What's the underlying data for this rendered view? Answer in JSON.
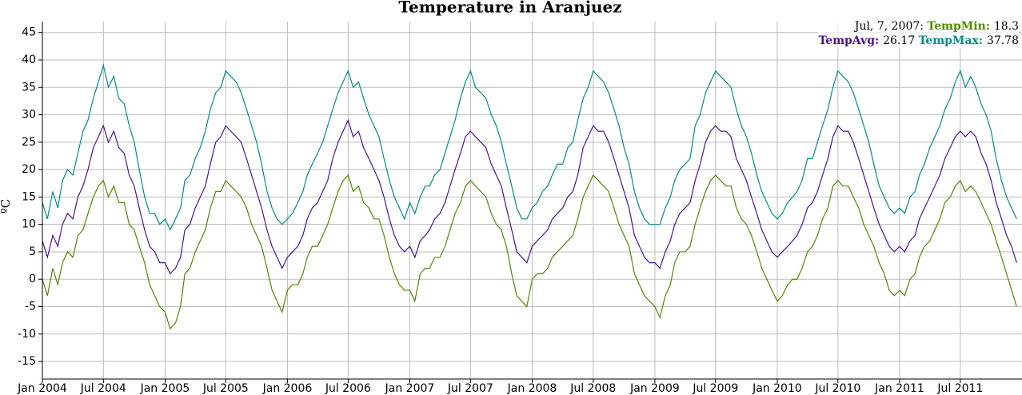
{
  "chart_data": {
    "type": "line",
    "title": "Temperature in Aranjuez",
    "y_label": "ºC",
    "x": [
      "2004-01-01",
      "2004-01-16",
      "2004-02-01",
      "2004-02-16",
      "2004-03-01",
      "2004-03-16",
      "2004-04-01",
      "2004-04-16",
      "2004-05-01",
      "2004-05-16",
      "2004-06-01",
      "2004-06-16",
      "2004-07-01",
      "2004-07-16",
      "2004-08-01",
      "2004-08-16",
      "2004-09-01",
      "2004-09-16",
      "2004-10-01",
      "2004-10-16",
      "2004-11-01",
      "2004-11-16",
      "2004-12-01",
      "2004-12-16",
      "2005-01-01",
      "2005-01-16",
      "2005-02-01",
      "2005-02-16",
      "2005-03-01",
      "2005-03-16",
      "2005-04-01",
      "2005-04-16",
      "2005-05-01",
      "2005-05-16",
      "2005-06-01",
      "2005-06-16",
      "2005-07-01",
      "2005-07-16",
      "2005-08-01",
      "2005-08-16",
      "2005-09-01",
      "2005-09-16",
      "2005-10-01",
      "2005-10-16",
      "2005-11-01",
      "2005-11-16",
      "2005-12-01",
      "2005-12-16",
      "2006-01-01",
      "2006-01-16",
      "2006-02-01",
      "2006-02-16",
      "2006-03-01",
      "2006-03-16",
      "2006-04-01",
      "2006-04-16",
      "2006-05-01",
      "2006-05-16",
      "2006-06-01",
      "2006-06-16",
      "2006-07-01",
      "2006-07-16",
      "2006-08-01",
      "2006-08-16",
      "2006-09-01",
      "2006-09-16",
      "2006-10-01",
      "2006-10-16",
      "2006-11-01",
      "2006-11-16",
      "2006-12-01",
      "2006-12-16",
      "2007-01-01",
      "2007-01-16",
      "2007-02-01",
      "2007-02-16",
      "2007-03-01",
      "2007-03-16",
      "2007-04-01",
      "2007-04-16",
      "2007-05-01",
      "2007-05-16",
      "2007-06-01",
      "2007-06-16",
      "2007-07-01",
      "2007-07-16",
      "2007-08-01",
      "2007-08-16",
      "2007-09-01",
      "2007-09-16",
      "2007-10-01",
      "2007-10-16",
      "2007-11-01",
      "2007-11-16",
      "2007-12-01",
      "2007-12-16",
      "2008-01-01",
      "2008-01-16",
      "2008-02-01",
      "2008-02-16",
      "2008-03-01",
      "2008-03-16",
      "2008-04-01",
      "2008-04-16",
      "2008-05-01",
      "2008-05-16",
      "2008-06-01",
      "2008-06-16",
      "2008-07-01",
      "2008-07-16",
      "2008-08-01",
      "2008-08-16",
      "2008-09-01",
      "2008-09-16",
      "2008-10-01",
      "2008-10-16",
      "2008-11-01",
      "2008-11-16",
      "2008-12-01",
      "2008-12-16",
      "2009-01-01",
      "2009-01-16",
      "2009-02-01",
      "2009-02-16",
      "2009-03-01",
      "2009-03-16",
      "2009-04-01",
      "2009-04-16",
      "2009-05-01",
      "2009-05-16",
      "2009-06-01",
      "2009-06-16",
      "2009-07-01",
      "2009-07-16",
      "2009-08-01",
      "2009-08-16",
      "2009-09-01",
      "2009-09-16",
      "2009-10-01",
      "2009-10-16",
      "2009-11-01",
      "2009-11-16",
      "2009-12-01",
      "2009-12-16",
      "2010-01-01",
      "2010-01-16",
      "2010-02-01",
      "2010-02-16",
      "2010-03-01",
      "2010-03-16",
      "2010-04-01",
      "2010-04-16",
      "2010-05-01",
      "2010-05-16",
      "2010-06-01",
      "2010-06-16",
      "2010-07-01",
      "2010-07-16",
      "2010-08-01",
      "2010-08-16",
      "2010-09-01",
      "2010-09-16",
      "2010-10-01",
      "2010-10-16",
      "2010-11-01",
      "2010-11-16",
      "2010-12-01",
      "2010-12-16",
      "2011-01-01",
      "2011-01-16",
      "2011-02-01",
      "2011-02-16",
      "2011-03-01",
      "2011-03-16",
      "2011-04-01",
      "2011-04-16",
      "2011-05-01",
      "2011-05-16",
      "2011-06-01",
      "2011-06-16",
      "2011-07-01",
      "2011-07-16",
      "2011-08-01",
      "2011-08-16",
      "2011-09-01",
      "2011-09-16",
      "2011-10-01",
      "2011-10-16",
      "2011-11-01",
      "2011-11-16",
      "2011-12-01",
      "2011-12-16"
    ],
    "series": [
      {
        "name": "TempMin",
        "color": "#4e8a00",
        "values": [
          0,
          -3,
          2,
          -1,
          3,
          5,
          4,
          8,
          9,
          12,
          15,
          17,
          18,
          15,
          17,
          14,
          14,
          10,
          9,
          6,
          3,
          -1,
          -3,
          -5,
          -6,
          -9,
          -8,
          -5,
          1,
          2,
          5,
          7,
          9,
          13,
          16,
          16,
          18,
          17,
          16,
          15,
          13,
          10,
          8,
          6,
          2,
          -2,
          -4,
          -6,
          -2,
          -1,
          -1,
          1,
          4,
          6,
          6,
          8,
          10,
          13,
          16,
          18,
          19,
          16,
          17,
          14,
          13,
          11,
          11,
          8,
          4,
          1,
          -1,
          -2,
          -2,
          -4,
          1,
          2,
          2,
          4,
          4,
          6,
          9,
          12,
          14,
          17,
          18,
          17,
          16,
          15,
          12,
          10,
          9,
          6,
          1,
          -3,
          -4,
          -5,
          0,
          1,
          1,
          2,
          4,
          5,
          6,
          7,
          8,
          11,
          15,
          17,
          19,
          18,
          17,
          16,
          13,
          10,
          8,
          6,
          1,
          -1,
          -3,
          -4,
          -5,
          -7,
          -3,
          -1,
          3,
          5,
          5,
          6,
          10,
          13,
          16,
          18,
          19,
          18,
          17,
          17,
          13,
          11,
          10,
          8,
          5,
          2,
          0,
          -2,
          -4,
          -3,
          -1,
          0,
          0,
          2,
          5,
          6,
          8,
          11,
          13,
          17,
          18,
          17,
          17,
          15,
          13,
          10,
          8,
          6,
          3,
          1,
          -2,
          -3,
          -2,
          -3,
          0,
          1,
          4,
          6,
          7,
          9,
          11,
          14,
          15,
          17,
          18,
          16,
          17,
          16,
          14,
          12,
          10,
          7,
          4,
          1,
          -2,
          -5
        ]
      },
      {
        "name": "TempAvg",
        "color": "#4b1190",
        "values": [
          7,
          4,
          8,
          6,
          10,
          12,
          11,
          15,
          17,
          20,
          24,
          26,
          28,
          25,
          27,
          24,
          23,
          19,
          17,
          13,
          9,
          6,
          5,
          3,
          3,
          1,
          2,
          4,
          9,
          10,
          13,
          15,
          17,
          21,
          25,
          26,
          28,
          27,
          26,
          25,
          22,
          19,
          16,
          13,
          9,
          6,
          4,
          2,
          4,
          5,
          6,
          8,
          11,
          13,
          14,
          16,
          18,
          22,
          25,
          27,
          29,
          26,
          27,
          24,
          22,
          20,
          18,
          15,
          11,
          8,
          6,
          5,
          6,
          4,
          7,
          8,
          9,
          11,
          12,
          14,
          17,
          20,
          23,
          26,
          27,
          26,
          25,
          24,
          21,
          19,
          17,
          13,
          9,
          5,
          4,
          3,
          6,
          7,
          8,
          9,
          11,
          12,
          13,
          15,
          16,
          19,
          24,
          26,
          28,
          27,
          27,
          25,
          22,
          19,
          16,
          13,
          8,
          6,
          4,
          3,
          3,
          2,
          5,
          7,
          10,
          12,
          13,
          14,
          18,
          21,
          25,
          27,
          28,
          27,
          27,
          26,
          22,
          20,
          18,
          15,
          12,
          9,
          7,
          5,
          4,
          5,
          6,
          7,
          8,
          10,
          13,
          14,
          16,
          19,
          22,
          26,
          28,
          27,
          27,
          25,
          22,
          19,
          16,
          13,
          10,
          8,
          6,
          5,
          6,
          5,
          7,
          8,
          11,
          13,
          15,
          17,
          19,
          22,
          24,
          26,
          27,
          26,
          27,
          26,
          23,
          21,
          18,
          14,
          11,
          8,
          6,
          3
        ]
      },
      {
        "name": "TempMax",
        "color": "#008b8b",
        "values": [
          14,
          11,
          16,
          13,
          18,
          20,
          19,
          23,
          27,
          29,
          33,
          36,
          39,
          35,
          37,
          33,
          32,
          28,
          25,
          20,
          15,
          12,
          12,
          10,
          11,
          9,
          11,
          13,
          18,
          19,
          22,
          24,
          27,
          31,
          34,
          35,
          38,
          37,
          36,
          34,
          31,
          28,
          25,
          21,
          16,
          13,
          11,
          10,
          11,
          12,
          14,
          16,
          19,
          21,
          23,
          25,
          28,
          31,
          34,
          36,
          38,
          35,
          36,
          33,
          30,
          28,
          26,
          22,
          18,
          15,
          13,
          11,
          14,
          12,
          15,
          17,
          17,
          19,
          20,
          23,
          26,
          29,
          33,
          36,
          38,
          35,
          34,
          33,
          30,
          28,
          25,
          21,
          17,
          13,
          11,
          11,
          13,
          14,
          16,
          17,
          19,
          21,
          21,
          24,
          25,
          29,
          33,
          35,
          38,
          37,
          36,
          34,
          31,
          28,
          24,
          21,
          16,
          13,
          11,
          10,
          10,
          10,
          13,
          15,
          18,
          20,
          21,
          22,
          28,
          30,
          34,
          36,
          38,
          37,
          36,
          35,
          31,
          28,
          26,
          23,
          19,
          16,
          14,
          12,
          11,
          12,
          14,
          15,
          16,
          18,
          22,
          22,
          25,
          28,
          31,
          35,
          38,
          37,
          36,
          34,
          31,
          28,
          25,
          21,
          17,
          15,
          13,
          12,
          13,
          12,
          15,
          16,
          19,
          21,
          24,
          26,
          28,
          31,
          33,
          36,
          38,
          35,
          37,
          35,
          32,
          30,
          27,
          22,
          18,
          15,
          13,
          11
        ]
      }
    ],
    "xlim": [
      "2004-01-01",
      "2012-01-01"
    ],
    "xticks": [
      {
        "value": "2004-01-01",
        "label": "Jan 2004"
      },
      {
        "value": "2004-07-01",
        "label": "Jul 2004"
      },
      {
        "value": "2005-01-01",
        "label": "Jan 2005"
      },
      {
        "value": "2005-07-01",
        "label": "Jul 2005"
      },
      {
        "value": "2006-01-01",
        "label": "Jan 2006"
      },
      {
        "value": "2006-07-01",
        "label": "Jul 2006"
      },
      {
        "value": "2007-01-01",
        "label": "Jan 2007"
      },
      {
        "value": "2007-07-01",
        "label": "Jul 2007"
      },
      {
        "value": "2008-01-01",
        "label": "Jan 2008"
      },
      {
        "value": "2008-07-01",
        "label": "Jul 2008"
      },
      {
        "value": "2009-01-01",
        "label": "Jan 2009"
      },
      {
        "value": "2009-07-01",
        "label": "Jul 2009"
      },
      {
        "value": "2010-01-01",
        "label": "Jan 2010"
      },
      {
        "value": "2010-07-01",
        "label": "Jul 2010"
      },
      {
        "value": "2011-01-01",
        "label": "Jan 2011"
      },
      {
        "value": "2011-07-01",
        "label": "Jul 2011"
      }
    ],
    "ylim": [
      -18.2,
      47
    ],
    "yticks": [
      -15,
      -10,
      -5,
      0,
      5,
      10,
      15,
      20,
      25,
      30,
      35,
      40,
      45
    ],
    "grid": true,
    "legend": {
      "date": "Jul, 7, 2007",
      "values": [
        18.3,
        26.17,
        37.78
      ]
    }
  }
}
